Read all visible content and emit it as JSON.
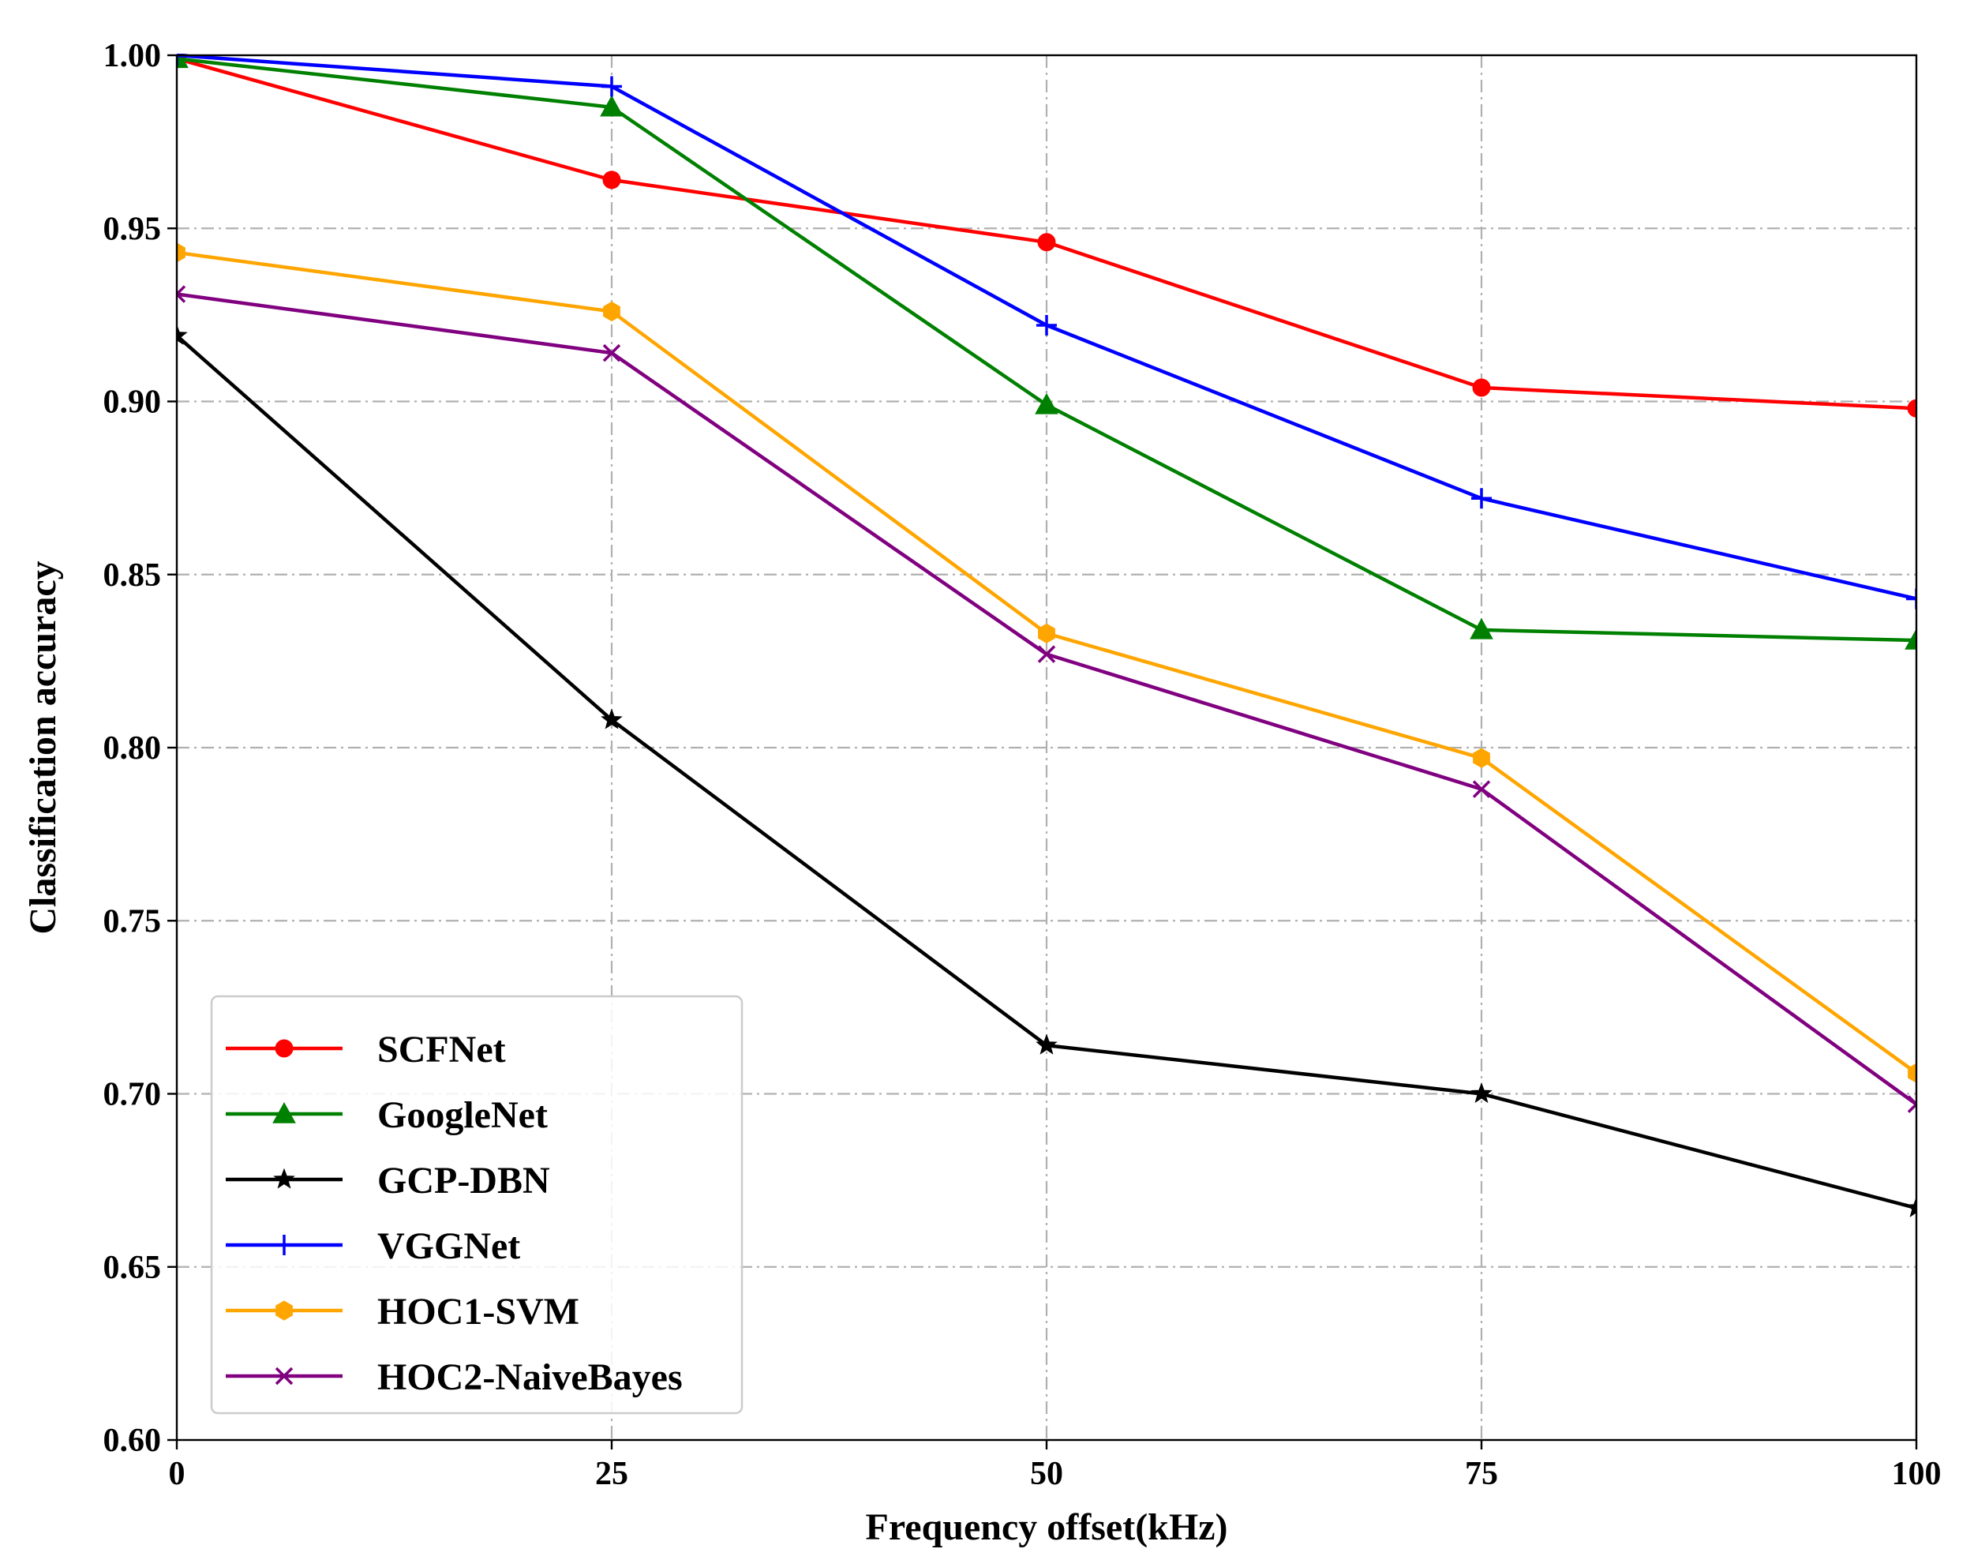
{
  "chart_data": {
    "type": "line",
    "title": "",
    "xlabel": "Frequency offset(kHz)",
    "ylabel": "Classification accuracy",
    "x": [
      0,
      25,
      50,
      75,
      100
    ],
    "xlim": [
      0,
      100
    ],
    "ylim": [
      0.6,
      1.0
    ],
    "xticks": [
      "0",
      "25",
      "50",
      "75",
      "100"
    ],
    "yticks": [
      "0.60",
      "0.65",
      "0.70",
      "0.75",
      "0.80",
      "0.85",
      "0.90",
      "0.95",
      "1.00"
    ],
    "grid": true,
    "legend_position": "lower-left",
    "series": [
      {
        "name": "SCFNet",
        "color": "#ff0000",
        "marker": "circle",
        "values": [
          0.999,
          0.964,
          0.946,
          0.904,
          0.898
        ]
      },
      {
        "name": "GoogleNet",
        "color": "#008000",
        "marker": "triangle",
        "values": [
          0.999,
          0.985,
          0.899,
          0.834,
          0.831
        ]
      },
      {
        "name": "GCP-DBN",
        "color": "#000000",
        "marker": "star",
        "values": [
          0.919,
          0.808,
          0.714,
          0.7,
          0.667
        ]
      },
      {
        "name": "VGGNet",
        "color": "#0000ff",
        "marker": "plus",
        "values": [
          1.0,
          0.991,
          0.922,
          0.872,
          0.843
        ]
      },
      {
        "name": "HOC1-SVM",
        "color": "#ffa500",
        "marker": "hexagon",
        "values": [
          0.943,
          0.926,
          0.833,
          0.797,
          0.706
        ]
      },
      {
        "name": "HOC2-NaiveBayes",
        "color": "#800080",
        "marker": "x",
        "values": [
          0.931,
          0.914,
          0.827,
          0.788,
          0.697
        ]
      }
    ]
  }
}
